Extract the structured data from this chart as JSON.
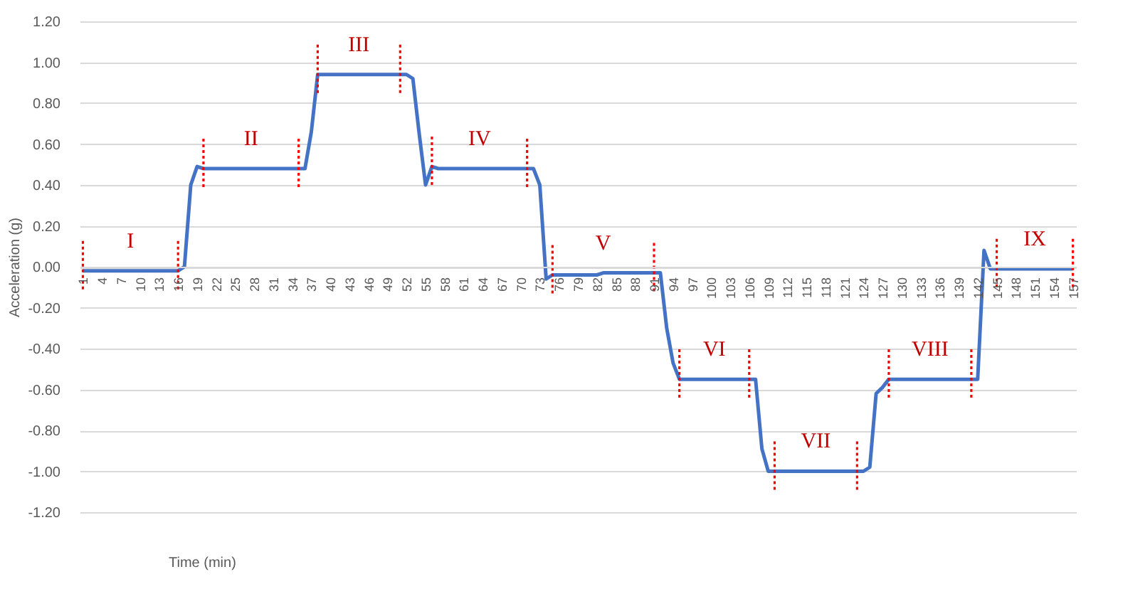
{
  "chart_data": {
    "type": "line",
    "xlabel": "Time (min)",
    "ylabel": "Acceleration (g)",
    "x": [
      1,
      2,
      3,
      4,
      5,
      6,
      7,
      8,
      9,
      10,
      11,
      12,
      13,
      14,
      15,
      16,
      17,
      18,
      19,
      20,
      21,
      22,
      23,
      24,
      25,
      26,
      27,
      28,
      29,
      30,
      31,
      32,
      33,
      34,
      35,
      36,
      37,
      38,
      39,
      40,
      41,
      42,
      43,
      44,
      45,
      46,
      47,
      48,
      49,
      50,
      51,
      52,
      53,
      54,
      55,
      56,
      57,
      58,
      59,
      60,
      61,
      62,
      63,
      64,
      65,
      66,
      67,
      68,
      69,
      70,
      71,
      72,
      73,
      74,
      75,
      76,
      77,
      78,
      79,
      80,
      81,
      82,
      83,
      84,
      85,
      86,
      87,
      88,
      89,
      90,
      91,
      92,
      93,
      94,
      95,
      96,
      97,
      98,
      99,
      100,
      101,
      102,
      103,
      104,
      105,
      106,
      107,
      108,
      109,
      110,
      111,
      112,
      113,
      114,
      115,
      116,
      117,
      118,
      119,
      120,
      121,
      122,
      123,
      124,
      125,
      126,
      127,
      128,
      129,
      130,
      131,
      132,
      133,
      134,
      135,
      136,
      137,
      138,
      139,
      140,
      141,
      142,
      143,
      144,
      145,
      146,
      147,
      148,
      149,
      150,
      151,
      152,
      153,
      154,
      155,
      156,
      157
    ],
    "series": [
      {
        "color": "#4472c4",
        "values": [
          -0.02,
          -0.02,
          -0.02,
          -0.02,
          -0.02,
          -0.02,
          -0.02,
          -0.02,
          -0.02,
          -0.02,
          -0.02,
          -0.02,
          -0.02,
          -0.02,
          -0.02,
          -0.02,
          0.0,
          0.4,
          0.49,
          0.48,
          0.48,
          0.48,
          0.48,
          0.48,
          0.48,
          0.48,
          0.48,
          0.48,
          0.48,
          0.48,
          0.48,
          0.48,
          0.48,
          0.48,
          0.48,
          0.48,
          0.66,
          0.94,
          0.94,
          0.94,
          0.94,
          0.94,
          0.94,
          0.94,
          0.94,
          0.94,
          0.94,
          0.94,
          0.94,
          0.94,
          0.94,
          0.94,
          0.92,
          0.65,
          0.4,
          0.49,
          0.48,
          0.48,
          0.48,
          0.48,
          0.48,
          0.48,
          0.48,
          0.48,
          0.48,
          0.48,
          0.48,
          0.48,
          0.48,
          0.48,
          0.48,
          0.48,
          0.4,
          -0.06,
          -0.04,
          -0.04,
          -0.04,
          -0.04,
          -0.04,
          -0.04,
          -0.04,
          -0.04,
          -0.03,
          -0.03,
          -0.03,
          -0.03,
          -0.03,
          -0.03,
          -0.03,
          -0.03,
          -0.03,
          -0.03,
          -0.3,
          -0.47,
          -0.55,
          -0.55,
          -0.55,
          -0.55,
          -0.55,
          -0.55,
          -0.55,
          -0.55,
          -0.55,
          -0.55,
          -0.55,
          -0.55,
          -0.55,
          -0.89,
          -1.0,
          -1.0,
          -1.0,
          -1.0,
          -1.0,
          -1.0,
          -1.0,
          -1.0,
          -1.0,
          -1.0,
          -1.0,
          -1.0,
          -1.0,
          -1.0,
          -1.0,
          -1.0,
          -0.98,
          -0.62,
          -0.59,
          -0.55,
          -0.55,
          -0.55,
          -0.55,
          -0.55,
          -0.55,
          -0.55,
          -0.55,
          -0.55,
          -0.55,
          -0.55,
          -0.55,
          -0.55,
          -0.55,
          -0.55,
          0.08,
          -0.01,
          -0.01,
          -0.01,
          -0.01,
          -0.01,
          -0.01,
          -0.01,
          -0.01,
          -0.01,
          -0.01,
          -0.01,
          -0.01,
          -0.01,
          -0.01
        ]
      }
    ],
    "xlim": [
      0.5,
      157.5
    ],
    "xticks": [
      1,
      4,
      7,
      10,
      13,
      16,
      19,
      22,
      25,
      28,
      31,
      34,
      37,
      40,
      43,
      46,
      49,
      52,
      55,
      58,
      61,
      64,
      67,
      70,
      73,
      76,
      79,
      82,
      85,
      88,
      91,
      94,
      97,
      100,
      103,
      106,
      109,
      112,
      115,
      118,
      121,
      124,
      127,
      130,
      133,
      136,
      139,
      142,
      145,
      148,
      151,
      154,
      157
    ],
    "ylim": [
      -1.2,
      1.2
    ],
    "yticks": [
      {
        "value": -1.2,
        "label": "-1.20"
      },
      {
        "value": -1.0,
        "label": "-1.00"
      },
      {
        "value": -0.8,
        "label": "-0.80"
      },
      {
        "value": -0.6,
        "label": "-0.60"
      },
      {
        "value": -0.4,
        "label": "-0.40"
      },
      {
        "value": -0.2,
        "label": "-0.20"
      },
      {
        "value": 0,
        "label": "0.00"
      },
      {
        "value": 0.2,
        "label": "0.20"
      },
      {
        "value": 0.4,
        "label": "0.40"
      },
      {
        "value": 0.6,
        "label": "0.60"
      },
      {
        "value": 0.8,
        "label": "0.80"
      },
      {
        "value": 1.0,
        "label": "1.00"
      },
      {
        "value": 1.2,
        "label": "1.20"
      }
    ],
    "grid": "y",
    "legend": false,
    "marker": "none",
    "line_style": "solid",
    "ref_lines": [
      {
        "axis": "x",
        "value": 1,
        "color": "#ff0000",
        "line_style": "dotted"
      },
      {
        "axis": "x",
        "value": 16,
        "color": "#ff0000",
        "line_style": "dotted"
      },
      {
        "axis": "x",
        "value": 20,
        "color": "#ff0000",
        "line_style": "dotted"
      },
      {
        "axis": "x",
        "value": 35,
        "color": "#ff0000",
        "line_style": "dotted"
      },
      {
        "axis": "x",
        "value": 38,
        "color": "#ff0000",
        "line_style": "dotted"
      },
      {
        "axis": "x",
        "value": 51,
        "color": "#ff0000",
        "line_style": "dotted"
      },
      {
        "axis": "x",
        "value": 56,
        "color": "#ff0000",
        "line_style": "dotted"
      },
      {
        "axis": "x",
        "value": 71,
        "color": "#ff0000",
        "line_style": "dotted"
      },
      {
        "axis": "x",
        "value": 75,
        "color": "#ff0000",
        "line_style": "dotted"
      },
      {
        "axis": "x",
        "value": 91,
        "color": "#ff0000",
        "line_style": "dotted"
      },
      {
        "axis": "x",
        "value": 95,
        "color": "#ff0000",
        "line_style": "dotted"
      },
      {
        "axis": "x",
        "value": 106,
        "color": "#ff0000",
        "line_style": "dotted"
      },
      {
        "axis": "x",
        "value": 110,
        "color": "#ff0000",
        "line_style": "dotted"
      },
      {
        "axis": "x",
        "value": 123,
        "color": "#ff0000",
        "line_style": "dotted"
      },
      {
        "axis": "x",
        "value": 128,
        "color": "#ff0000",
        "line_style": "dotted"
      },
      {
        "axis": "x",
        "value": 141,
        "color": "#ff0000",
        "line_style": "dotted"
      },
      {
        "axis": "x",
        "value": 145,
        "color": "#ff0000",
        "line_style": "dotted"
      },
      {
        "axis": "x",
        "value": 157,
        "color": "#ff0000",
        "line_style": "dotted"
      }
    ],
    "annotations": [
      "I",
      "II",
      "III",
      "IV",
      "V",
      "VI",
      "VII",
      "VIII",
      "IX"
    ]
  }
}
